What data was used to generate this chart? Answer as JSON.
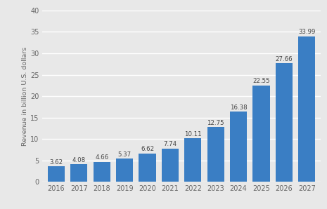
{
  "years": [
    2016,
    2017,
    2018,
    2019,
    2020,
    2021,
    2022,
    2023,
    2024,
    2025,
    2026,
    2027
  ],
  "values": [
    3.62,
    4.08,
    4.66,
    5.37,
    6.62,
    7.74,
    10.11,
    12.75,
    16.38,
    22.55,
    27.66,
    33.99
  ],
  "bar_color": "#3a7ec4",
  "background_color": "#e8e8e8",
  "plot_bg_color": "#e8e8e8",
  "ylabel": "Revenue in billion U.S. dollars",
  "ylim": [
    0,
    40
  ],
  "yticks": [
    0,
    5,
    10,
    15,
    20,
    25,
    30,
    35,
    40
  ],
  "grid_color": "#ffffff",
  "tick_label_color": "#666666",
  "label_fontsize": 7.0,
  "axis_label_fontsize": 6.8,
  "value_label_color": "#444444",
  "value_label_fontsize": 6.2,
  "bar_width": 0.75
}
